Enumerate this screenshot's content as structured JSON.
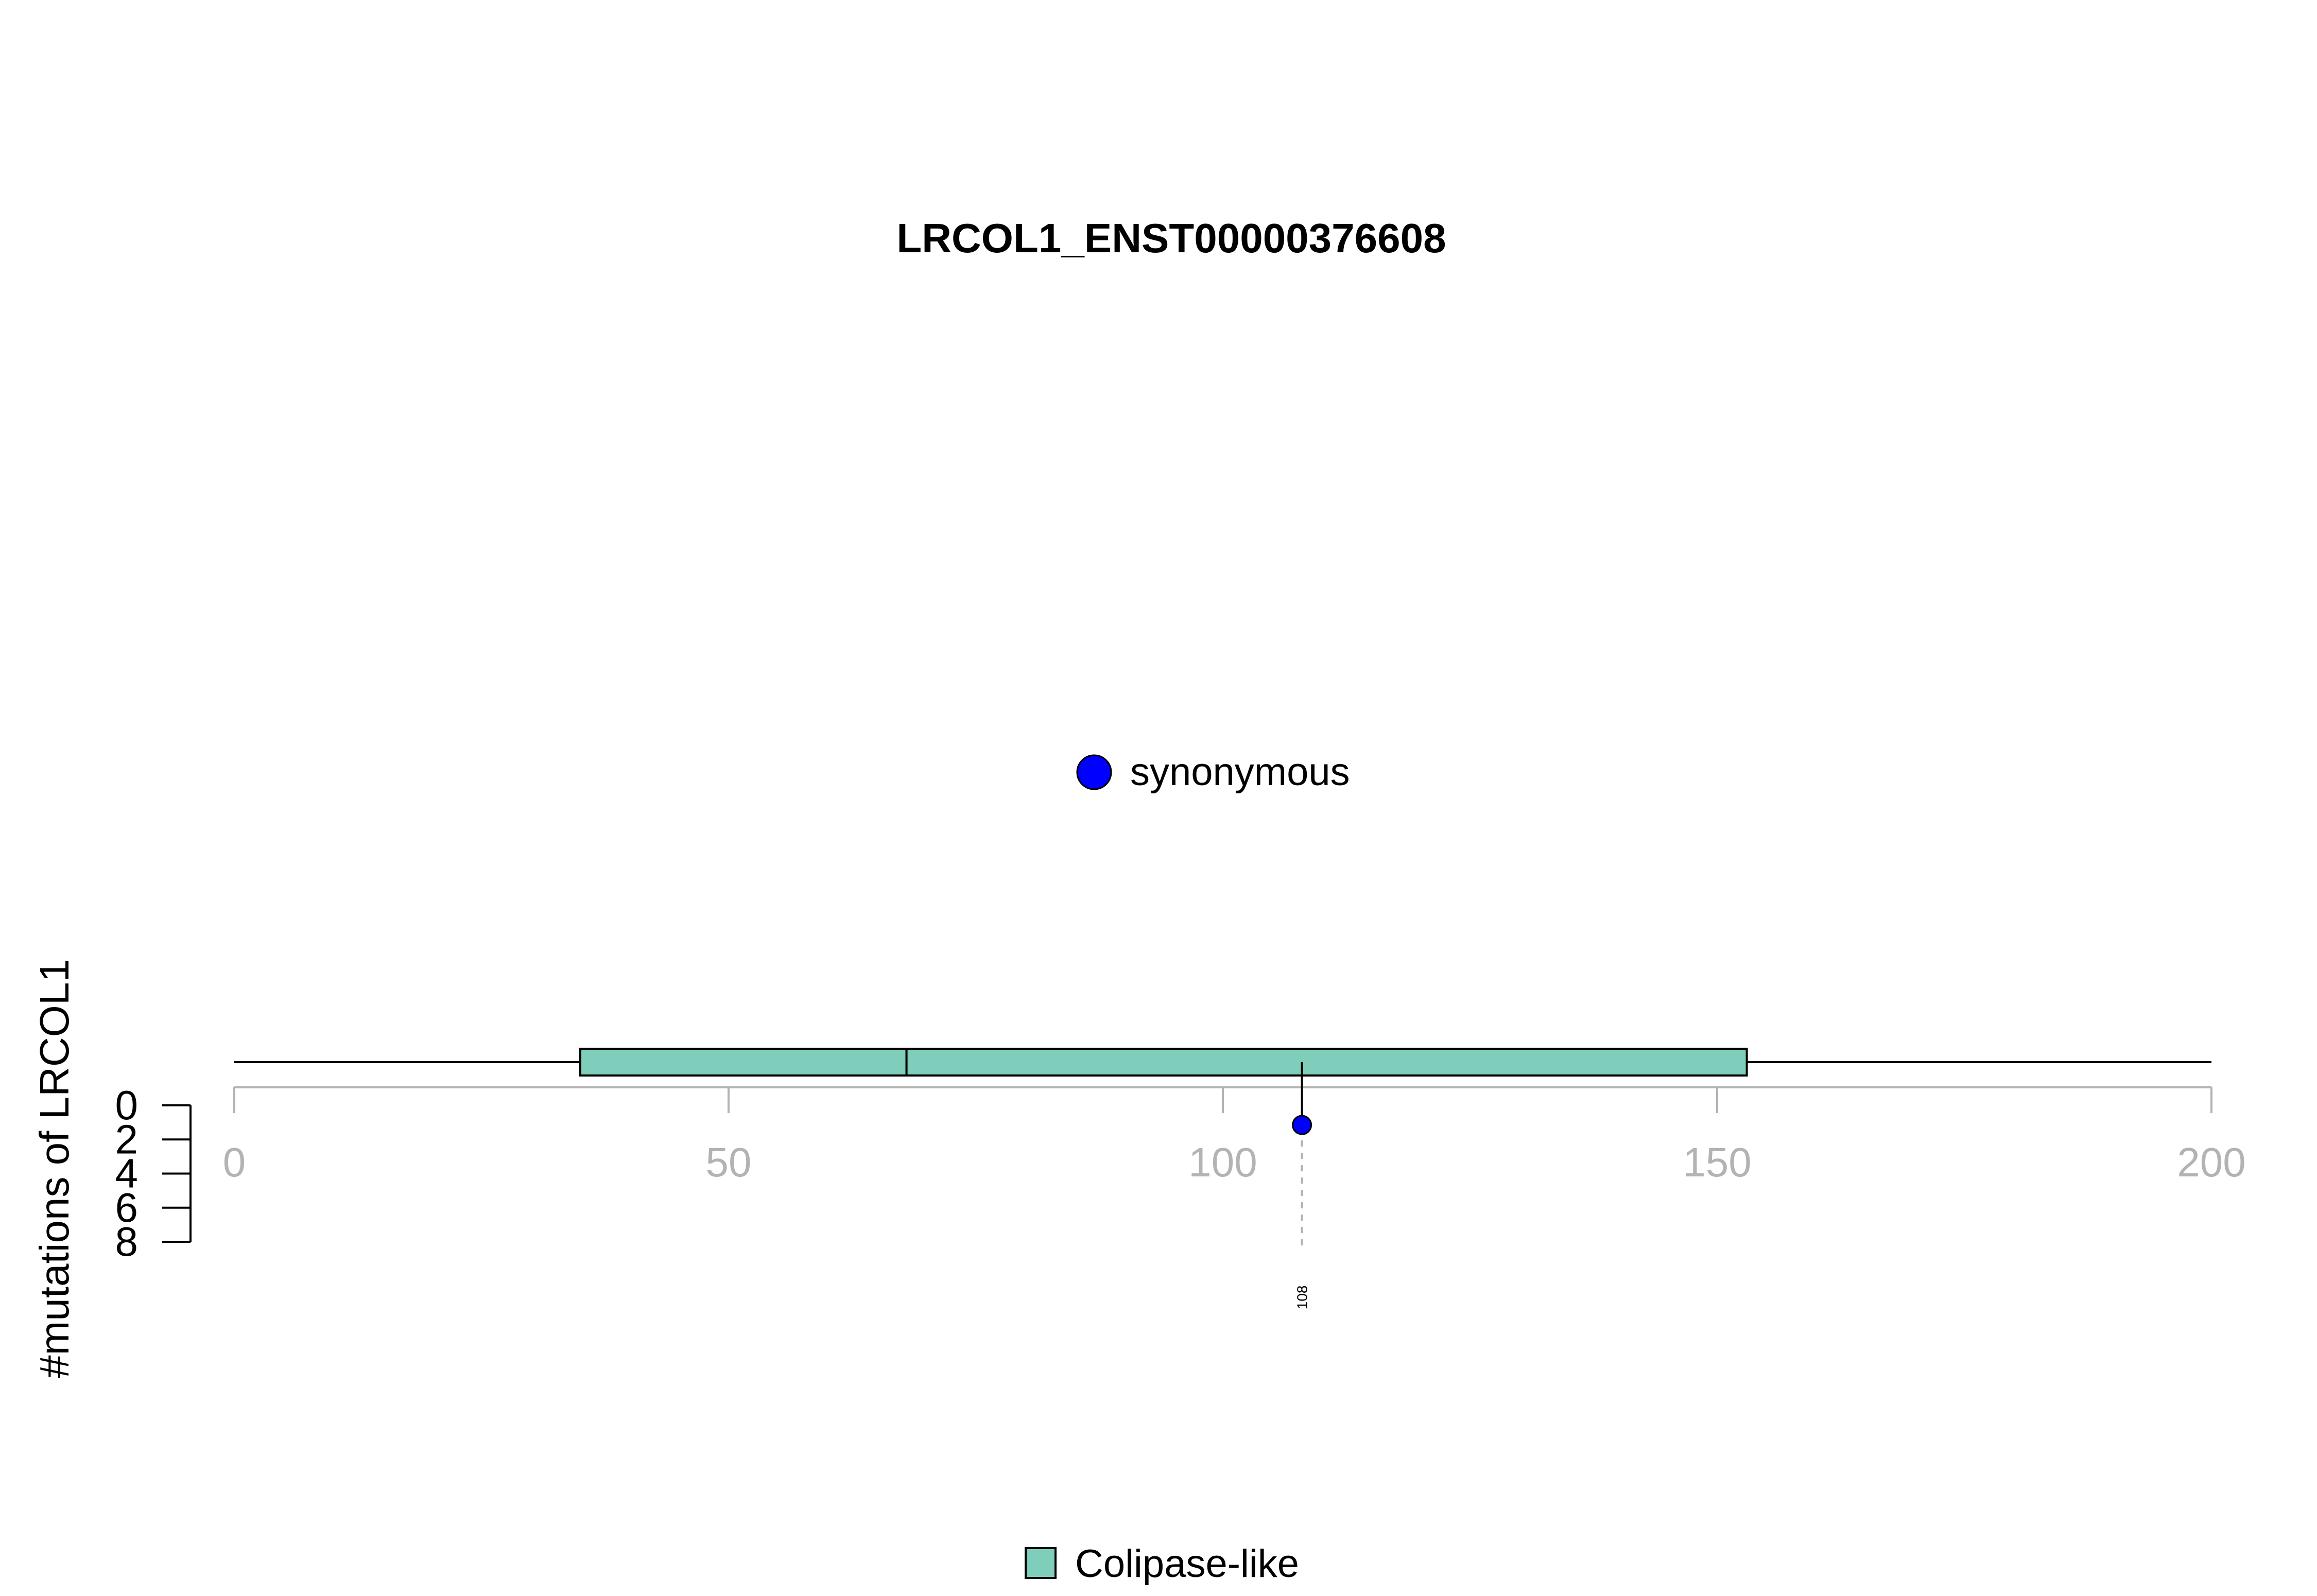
{
  "chart_data": {
    "type": "lollipop",
    "title": "LRCOL1_ENST00000376608",
    "ylabel": "#mutations of LRCOL1",
    "x_axis": {
      "range": [
        0,
        200
      ],
      "ticks": [
        "0",
        "50",
        "100",
        "150",
        "200"
      ]
    },
    "y_axis": {
      "range": [
        0,
        8
      ],
      "ticks": [
        "0",
        "2",
        "4",
        "6",
        "8"
      ],
      "direction": "downward"
    },
    "protein_length": 200,
    "domains": [
      {
        "name": "Colipase-like",
        "start": 35,
        "end": 68,
        "color": "#7FCDBB"
      },
      {
        "name": "Colipase-like",
        "start": 68,
        "end": 153,
        "color": "#7FCDBB"
      }
    ],
    "mutations": [
      {
        "position": 108,
        "position_label": "108",
        "count": 1,
        "type": "synonymous",
        "color": "#0000FF"
      }
    ],
    "mutation_legend": [
      {
        "label": "synonymous",
        "color": "#0000FF"
      }
    ],
    "domain_legend": [
      {
        "label": "Colipase-like",
        "color": "#7FCDBB"
      }
    ]
  }
}
